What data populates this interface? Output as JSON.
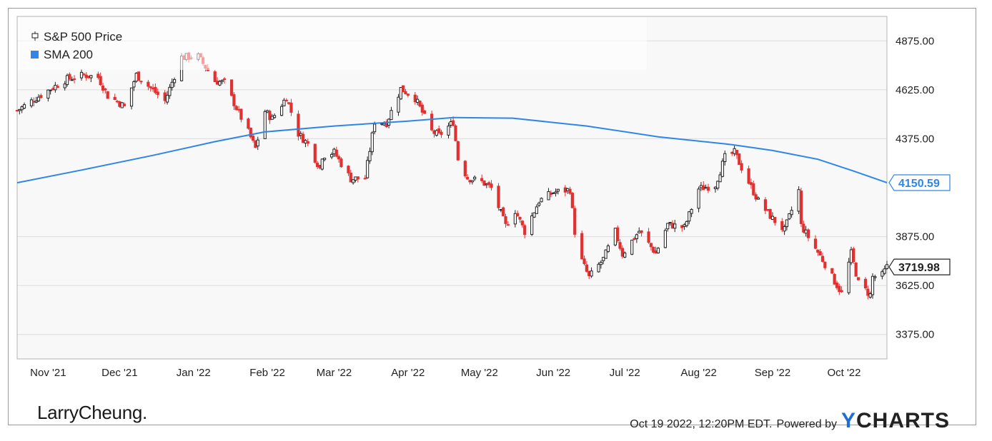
{
  "chart_data": {
    "type": "candlestick",
    "series": [
      {
        "name": "S&P 500 Price",
        "color": "#222222",
        "down_color": "#e03030"
      },
      {
        "name": "SMA 200",
        "color": "#2f86e8"
      }
    ],
    "y_ticks": [
      "4875.00",
      "4625.00",
      "4375.00",
      "3875.00",
      "3625.00",
      "3375.00"
    ],
    "x_ticks": [
      "Nov '21",
      "Dec '21",
      "Jan '22",
      "Feb '22",
      "Mar '22",
      "Apr '22",
      "May '22",
      "Jun '22",
      "Jul '22",
      "Aug '22",
      "Sep '22",
      "Oct '22"
    ],
    "ylim": [
      3250,
      5000
    ],
    "xlim": [
      "2021-10-19",
      "2022-10-19"
    ],
    "last_price_label": "3719.98",
    "sma_label": "4150.59",
    "grid": true,
    "legend": "top-left",
    "price": [
      [
        "2021-10-19",
        4519
      ],
      [
        "2021-10-26",
        4575
      ],
      [
        "2021-11-02",
        4630
      ],
      [
        "2021-11-09",
        4680
      ],
      [
        "2021-11-16",
        4700
      ],
      [
        "2021-11-22",
        4690
      ],
      [
        "2021-11-26",
        4594
      ],
      [
        "2021-11-30",
        4567
      ],
      [
        "2021-12-03",
        4538
      ],
      [
        "2021-12-08",
        4701
      ],
      [
        "2021-12-14",
        4634
      ],
      [
        "2021-12-20",
        4568
      ],
      [
        "2021-12-27",
        4791
      ],
      [
        "2022-01-03",
        4796
      ],
      [
        "2022-01-10",
        4670
      ],
      [
        "2022-01-14",
        4662
      ],
      [
        "2022-01-19",
        4532
      ],
      [
        "2022-01-24",
        4410
      ],
      [
        "2022-01-27",
        4326
      ],
      [
        "2022-01-31",
        4516
      ],
      [
        "2022-02-03",
        4477
      ],
      [
        "2022-02-09",
        4587
      ],
      [
        "2022-02-14",
        4401
      ],
      [
        "2022-02-18",
        4348
      ],
      [
        "2022-02-23",
        4225
      ],
      [
        "2022-02-24",
        4288
      ],
      [
        "2022-03-01",
        4306
      ],
      [
        "2022-03-08",
        4170
      ],
      [
        "2022-03-14",
        4173
      ],
      [
        "2022-03-18",
        4463
      ],
      [
        "2022-03-23",
        4456
      ],
      [
        "2022-03-29",
        4631
      ],
      [
        "2022-04-04",
        4583
      ],
      [
        "2022-04-11",
        4413
      ],
      [
        "2022-04-14",
        4392
      ],
      [
        "2022-04-20",
        4460
      ],
      [
        "2022-04-22",
        4272
      ],
      [
        "2022-04-26",
        4175
      ],
      [
        "2022-05-02",
        4155
      ],
      [
        "2022-05-06",
        4123
      ],
      [
        "2022-05-12",
        3930
      ],
      [
        "2022-05-16",
        4008
      ],
      [
        "2022-05-20",
        3901
      ],
      [
        "2022-05-26",
        4057
      ],
      [
        "2022-06-01",
        4101
      ],
      [
        "2022-06-08",
        4115
      ],
      [
        "2022-06-10",
        3901
      ],
      [
        "2022-06-13",
        3750
      ],
      [
        "2022-06-16",
        3667
      ],
      [
        "2022-06-22",
        3760
      ],
      [
        "2022-06-27",
        3900
      ],
      [
        "2022-06-30",
        3785
      ],
      [
        "2022-07-07",
        3903
      ],
      [
        "2022-07-14",
        3790
      ],
      [
        "2022-07-19",
        3937
      ],
      [
        "2022-07-26",
        3921
      ],
      [
        "2022-08-01",
        4119
      ],
      [
        "2022-08-08",
        4140
      ],
      [
        "2022-08-12",
        4280
      ],
      [
        "2022-08-16",
        4305
      ],
      [
        "2022-08-19",
        4228
      ],
      [
        "2022-08-23",
        4128
      ],
      [
        "2022-08-26",
        4057
      ],
      [
        "2022-09-01",
        3966
      ],
      [
        "2022-09-06",
        3908
      ],
      [
        "2022-09-12",
        4110
      ],
      [
        "2022-09-13",
        3932
      ],
      [
        "2022-09-16",
        3873
      ],
      [
        "2022-09-22",
        3757
      ],
      [
        "2022-09-27",
        3647
      ],
      [
        "2022-09-30",
        3585
      ],
      [
        "2022-10-04",
        3790
      ],
      [
        "2022-10-07",
        3639
      ],
      [
        "2022-10-12",
        3577
      ],
      [
        "2022-10-13",
        3669
      ],
      [
        "2022-10-17",
        3677
      ],
      [
        "2022-10-19",
        3720
      ]
    ],
    "sma": [
      [
        "2021-10-19",
        4150
      ],
      [
        "2021-11-15",
        4215
      ],
      [
        "2021-12-15",
        4290
      ],
      [
        "2022-01-10",
        4360
      ],
      [
        "2022-01-31",
        4410
      ],
      [
        "2022-03-01",
        4440
      ],
      [
        "2022-04-01",
        4465
      ],
      [
        "2022-04-20",
        4483
      ],
      [
        "2022-05-15",
        4480
      ],
      [
        "2022-06-15",
        4440
      ],
      [
        "2022-07-15",
        4385
      ],
      [
        "2022-08-15",
        4345
      ],
      [
        "2022-09-01",
        4315
      ],
      [
        "2022-09-20",
        4270
      ],
      [
        "2022-10-05",
        4210
      ],
      [
        "2022-10-19",
        4150.59
      ]
    ]
  },
  "brand": {
    "name": "LarryCheung",
    "dot": "."
  },
  "footer": {
    "timestamp": "Oct 19 2022, 12:20PM EDT.",
    "powered": "Powered by",
    "logo_y": "Y",
    "logo_rest": "CHARTS"
  }
}
